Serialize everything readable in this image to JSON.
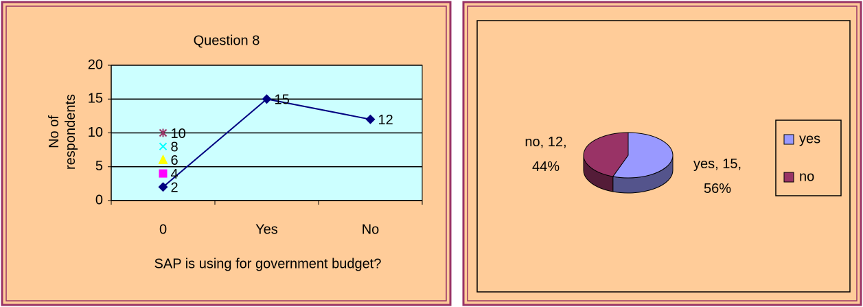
{
  "chart_data": [
    {
      "type": "line",
      "title": "Question 8",
      "ylabel": "No of respondents",
      "xlabel": "SAP is using for government budget?",
      "categories": [
        "0",
        "Yes",
        "No"
      ],
      "series": [
        {
          "color": "#000080",
          "marker": "diamond",
          "values": [
            2,
            15,
            12
          ]
        },
        {
          "color": "#ff00ff",
          "marker": "square",
          "values": [
            4,
            null,
            null
          ]
        },
        {
          "color": "#ffff00",
          "marker": "triangle",
          "values": [
            6,
            null,
            null
          ]
        },
        {
          "color": "#00ffff",
          "marker": "x",
          "values": [
            8,
            null,
            null
          ]
        },
        {
          "color": "#993366",
          "marker": "star",
          "values": [
            10,
            null,
            null
          ]
        }
      ],
      "ylim": [
        0,
        20
      ],
      "yticks": [
        0,
        5,
        10,
        15,
        20
      ],
      "grid": true,
      "plot_background": "#ccffff"
    },
    {
      "type": "pie",
      "categories": [
        "yes",
        "no"
      ],
      "values": [
        15,
        12
      ],
      "value_labels": [
        "yes, 15, 56%",
        "no, 12, 44%"
      ],
      "colors": [
        "#9999ff",
        "#993366"
      ],
      "legend": "right",
      "three_d": true
    }
  ]
}
